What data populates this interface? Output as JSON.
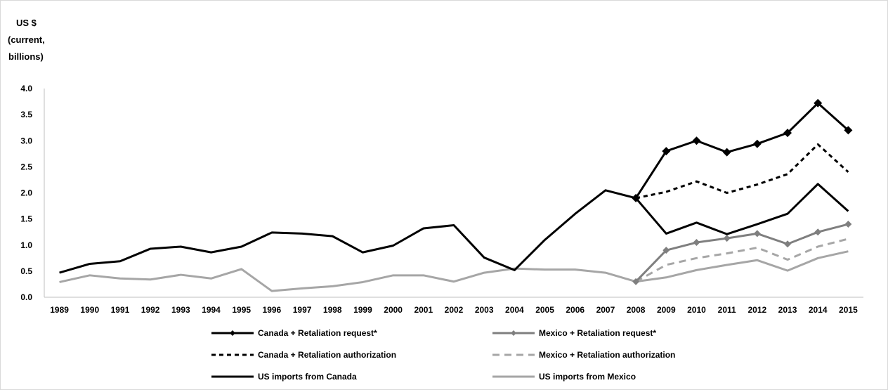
{
  "chart_data": {
    "type": "line",
    "ylabel": [
      "US $",
      "(current,",
      "billions)"
    ],
    "ylim": [
      0,
      4
    ],
    "yticks": [
      "0.0",
      "0.5",
      "1.0",
      "1.5",
      "2.0",
      "2.5",
      "3.0",
      "3.5",
      "4.0"
    ],
    "x": [
      "1989",
      "1990",
      "1991",
      "1992",
      "1993",
      "1994",
      "1995",
      "1996",
      "1997",
      "1998",
      "1999",
      "2000",
      "2001",
      "2002",
      "2003",
      "2004",
      "2005",
      "2006",
      "2007",
      "2008",
      "2009",
      "2010",
      "2011",
      "2012",
      "2013",
      "2014",
      "2015"
    ],
    "grid": false,
    "legend_position": "bottom",
    "series": [
      {
        "name": "Canada + Retaliation request*",
        "color": "#000000",
        "style": "solid-marker",
        "values": [
          null,
          null,
          null,
          null,
          null,
          null,
          null,
          null,
          null,
          null,
          null,
          null,
          null,
          null,
          null,
          null,
          null,
          null,
          null,
          1.9,
          2.8,
          3.0,
          2.78,
          2.94,
          3.15,
          3.72,
          3.2
        ]
      },
      {
        "name": "Mexico + Retaliation request*",
        "color": "#7f7f7f",
        "style": "solid-marker",
        "values": [
          null,
          null,
          null,
          null,
          null,
          null,
          null,
          null,
          null,
          null,
          null,
          null,
          null,
          null,
          null,
          null,
          null,
          null,
          null,
          0.3,
          0.9,
          1.05,
          1.13,
          1.22,
          1.02,
          1.25,
          1.4
        ]
      },
      {
        "name": "Canada + Retaliation authorization",
        "color": "#000000",
        "style": "dashed",
        "values": [
          null,
          null,
          null,
          null,
          null,
          null,
          null,
          null,
          null,
          null,
          null,
          null,
          null,
          null,
          null,
          null,
          null,
          null,
          null,
          1.9,
          2.02,
          2.22,
          2.0,
          2.16,
          2.36,
          2.93,
          2.4
        ]
      },
      {
        "name": "Mexico + Retaliation authorization",
        "color": "#a6a6a6",
        "style": "dashed",
        "values": [
          null,
          null,
          null,
          null,
          null,
          null,
          null,
          null,
          null,
          null,
          null,
          null,
          null,
          null,
          null,
          null,
          null,
          null,
          null,
          0.3,
          0.62,
          0.75,
          0.84,
          0.95,
          0.72,
          0.97,
          1.12
        ]
      },
      {
        "name": "US imports from Canada",
        "color": "#000000",
        "style": "solid",
        "values": [
          0.47,
          0.64,
          0.69,
          0.93,
          0.97,
          0.86,
          0.97,
          1.24,
          1.22,
          1.17,
          0.86,
          0.99,
          1.32,
          1.38,
          0.76,
          0.52,
          1.1,
          1.6,
          2.05,
          1.9,
          1.22,
          1.43,
          1.21,
          1.4,
          1.6,
          2.17,
          1.65
        ]
      },
      {
        "name": "US imports from Mexico",
        "color": "#a6a6a6",
        "style": "solid",
        "values": [
          0.29,
          0.42,
          0.36,
          0.34,
          0.43,
          0.36,
          0.54,
          0.12,
          0.17,
          0.21,
          0.29,
          0.42,
          0.42,
          0.3,
          0.47,
          0.55,
          0.53,
          0.53,
          0.47,
          0.3,
          0.38,
          0.52,
          0.62,
          0.71,
          0.51,
          0.75,
          0.88
        ]
      }
    ]
  }
}
